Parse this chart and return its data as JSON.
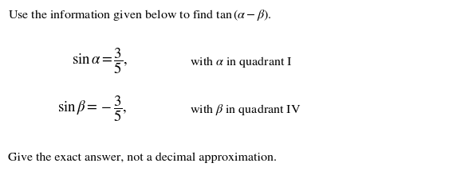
{
  "line1": "Use the information given below to find $\\mathrm{tan}\\,(\\alpha - \\beta)$.",
  "line2_left": "$\\sin\\alpha = \\dfrac{3}{5},$",
  "line2_right": "with $\\alpha$ in quadrant I",
  "line3_left": "$\\sin\\beta = -\\dfrac{3}{5},$",
  "line3_right": "with $\\beta$ in quadrant IV",
  "line4": "Give the exact answer, not a decimal approximation.",
  "bg_color": "#ffffff",
  "text_color": "#000000",
  "font_size_line1": 11.5,
  "font_size_eq": 13.5,
  "font_size_text": 11.5
}
